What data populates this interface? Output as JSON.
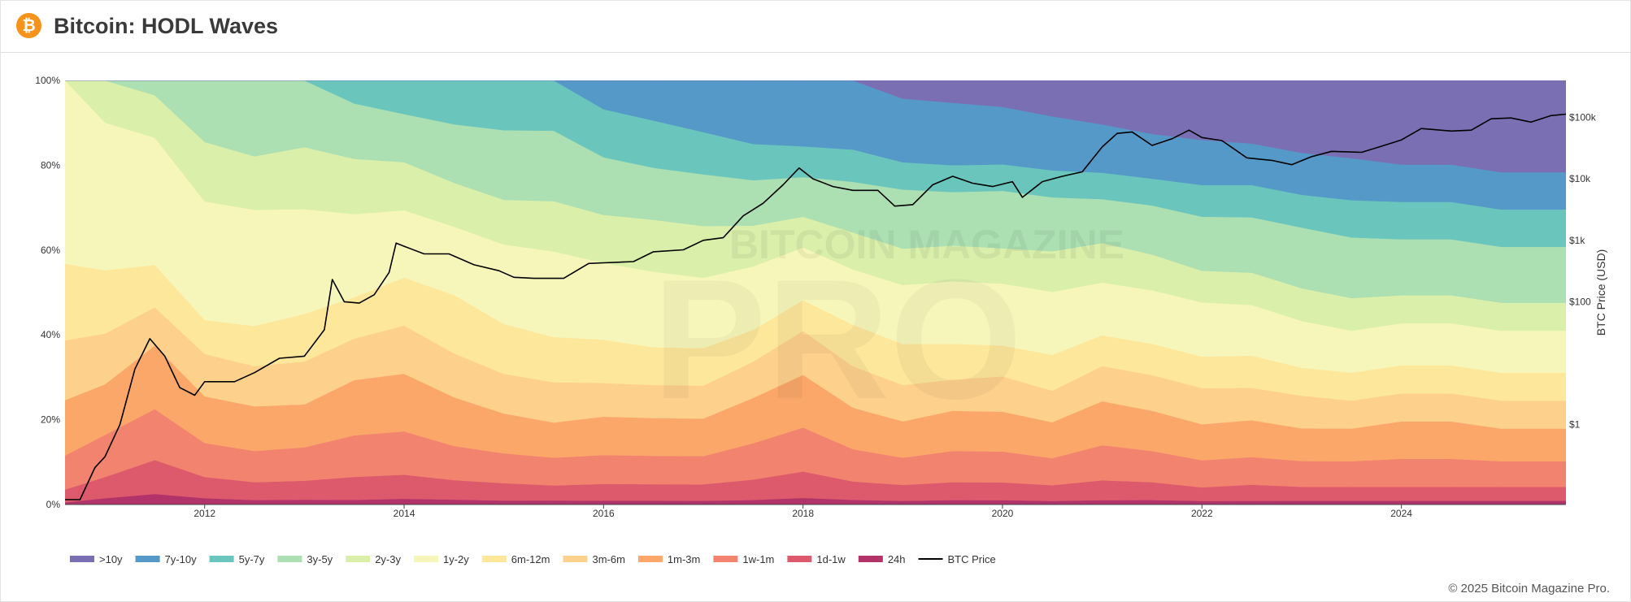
{
  "header": {
    "title": "Bitcoin: HODL Waves",
    "logo_icon": "bitcoin-logo-icon",
    "logo_glyph": "₿"
  },
  "footer": {
    "copyright": "© 2025 Bitcoin Magazine Pro."
  },
  "watermark": {
    "text": "BITCOIN MAGAZINE",
    "text2": "PRO"
  },
  "chart_data": {
    "type": "area",
    "stacked": true,
    "y_axis": {
      "label": "",
      "range": [
        0,
        100
      ],
      "unit": "%",
      "ticks": [
        "0%",
        "20%",
        "40%",
        "60%",
        "80%",
        "100%"
      ]
    },
    "y2_axis": {
      "label": "BTC Price (USD)",
      "scale": "log",
      "range": [
        0.05,
        400000
      ],
      "ticks": [
        "$1",
        "$100",
        "$1k",
        "$10k",
        "$100k"
      ],
      "tick_values": [
        1,
        100,
        1000,
        10000,
        100000
      ]
    },
    "x_axis": {
      "range": [
        2010.6,
        2025.65
      ],
      "ticks": [
        "2012",
        "2014",
        "2016",
        "2018",
        "2020",
        "2022",
        "2024"
      ],
      "tick_values": [
        2012,
        2014,
        2016,
        2018,
        2020,
        2022,
        2024
      ]
    },
    "grid": false,
    "legend_position": "bottom-left",
    "x": [
      2010.6,
      2011.0,
      2011.5,
      2012.0,
      2012.5,
      2013.0,
      2013.5,
      2014.0,
      2014.5,
      2015.0,
      2015.5,
      2016.0,
      2016.5,
      2017.0,
      2017.5,
      2018.0,
      2018.5,
      2019.0,
      2019.5,
      2020.0,
      2020.5,
      2021.0,
      2021.5,
      2022.0,
      2022.5,
      2023.0,
      2023.5,
      2024.0,
      2024.5,
      2025.0,
      2025.65
    ],
    "series": [
      {
        "name": "24h",
        "color": "#b2326a",
        "values": [
          0.5,
          1.5,
          2.5,
          1.5,
          1,
          1,
          1,
          1.2,
          1,
          0.8,
          0.8,
          0.8,
          0.8,
          0.8,
          1,
          1.5,
          1,
          0.8,
          1,
          1,
          0.8,
          1,
          1,
          0.8,
          0.8,
          0.8,
          0.8,
          0.8,
          0.8,
          0.8,
          0.8
        ]
      },
      {
        "name": "1d-1w",
        "color": "#dd5a6c",
        "values": [
          3,
          5,
          8,
          5,
          4,
          4,
          5,
          5,
          4,
          3.5,
          3,
          3.5,
          3.5,
          3.5,
          4.5,
          6,
          4,
          3.5,
          4,
          4,
          3.5,
          4.5,
          4,
          3,
          3.5,
          3,
          3,
          3,
          3,
          3,
          3
        ]
      },
      {
        "name": "1w-1m",
        "color": "#f2836e",
        "values": [
          8,
          10,
          12,
          8,
          7,
          7,
          9,
          9,
          7,
          6,
          5.5,
          6,
          6,
          6,
          8,
          10,
          7,
          6,
          7,
          7,
          6,
          8,
          7,
          6,
          6,
          5.5,
          5.5,
          6,
          6,
          5.5,
          5.5
        ]
      },
      {
        "name": "1m-3m",
        "color": "#fba76a",
        "values": [
          13,
          12,
          15,
          11,
          10,
          9,
          12,
          12,
          10,
          8,
          7,
          8,
          8,
          8,
          10,
          12,
          9,
          8,
          9,
          9,
          8,
          10,
          9,
          8,
          8,
          7,
          7,
          8,
          8,
          7,
          7
        ]
      },
      {
        "name": "3m-6m",
        "color": "#fdd08b",
        "values": [
          14,
          12,
          9,
          10,
          9,
          9,
          9,
          10,
          9,
          8,
          8,
          7,
          7,
          7,
          8,
          10,
          9,
          8,
          7,
          8,
          7,
          8,
          8,
          8,
          7,
          7,
          6,
          6,
          6,
          6,
          6
        ]
      },
      {
        "name": "6m-12m",
        "color": "#fde79b",
        "values": [
          18,
          15,
          10,
          8,
          9,
          10,
          9,
          10,
          12,
          10,
          9,
          9,
          8,
          8,
          7,
          7,
          9,
          9,
          8,
          7,
          8,
          7,
          7,
          7,
          7,
          6,
          6,
          6,
          6,
          6,
          6
        ]
      },
      {
        "name": "1y-2y",
        "color": "#f7f6ba",
        "values": [
          43,
          35,
          30,
          28,
          26,
          22,
          18,
          14,
          14,
          16,
          17,
          16,
          16,
          15,
          14,
          12,
          12,
          13,
          14,
          14,
          14,
          12,
          12,
          12,
          11,
          10,
          9,
          9,
          9,
          9,
          9
        ]
      },
      {
        "name": "2y-3y",
        "color": "#d9efaa",
        "values": [
          0,
          10,
          10,
          14,
          12,
          13,
          12,
          10,
          9,
          9,
          10,
          10,
          11,
          11,
          9,
          7,
          8,
          8,
          8,
          8,
          9,
          9,
          8,
          7,
          7,
          7,
          7,
          6,
          6,
          6,
          6
        ]
      },
      {
        "name": "3y-5y",
        "color": "#acdfb2",
        "values": [
          0,
          0,
          3.5,
          14.5,
          17,
          14,
          12,
          10,
          12,
          14,
          14,
          12,
          11,
          11,
          10,
          9,
          11,
          13,
          12,
          13,
          12,
          10,
          11,
          12,
          12,
          13,
          13,
          12,
          12,
          12,
          12
        ]
      },
      {
        "name": "5y-7y",
        "color": "#6ac6bd",
        "values": [
          0,
          0,
          0,
          0,
          0,
          0,
          5,
          7,
          9,
          10,
          10,
          10,
          10,
          9,
          8,
          7,
          7,
          6,
          6,
          6,
          6,
          6,
          6,
          7,
          7,
          7,
          8,
          8,
          8,
          8,
          8
        ]
      },
      {
        "name": "7y-10y",
        "color": "#5599c8",
        "values": [
          0,
          0,
          0,
          0,
          0,
          0,
          0,
          0,
          0,
          0,
          0,
          6,
          8.5,
          11,
          14,
          15,
          15,
          14,
          14,
          13,
          12,
          11,
          10,
          10,
          9,
          9,
          9,
          8,
          8,
          8,
          8
        ]
      },
      {
        "name": ">10y",
        "color": "#7b6fb4",
        "values": [
          0,
          0,
          0,
          0,
          0,
          0,
          0,
          0,
          0,
          0,
          0,
          0,
          0,
          0,
          0,
          0,
          0,
          4,
          5,
          6,
          8,
          10,
          12,
          13.2,
          13.7,
          15.5,
          16.7,
          18,
          18,
          19.7,
          19.7
        ]
      }
    ],
    "price_series": {
      "name": "BTC Price",
      "color": "#000000",
      "x": [
        2010.6,
        2010.75,
        2010.9,
        2011.0,
        2011.15,
        2011.3,
        2011.45,
        2011.6,
        2011.75,
        2011.9,
        2012.0,
        2012.3,
        2012.5,
        2012.75,
        2013.0,
        2013.2,
        2013.28,
        2013.4,
        2013.55,
        2013.7,
        2013.85,
        2013.92,
        2014.0,
        2014.2,
        2014.45,
        2014.7,
        2014.95,
        2015.1,
        2015.3,
        2015.6,
        2015.85,
        2016.0,
        2016.3,
        2016.5,
        2016.8,
        2017.0,
        2017.2,
        2017.4,
        2017.6,
        2017.8,
        2017.96,
        2018.1,
        2018.3,
        2018.5,
        2018.75,
        2018.92,
        2019.1,
        2019.3,
        2019.5,
        2019.7,
        2019.9,
        2020.1,
        2020.2,
        2020.4,
        2020.6,
        2020.8,
        2021.0,
        2021.15,
        2021.3,
        2021.5,
        2021.7,
        2021.87,
        2022.0,
        2022.2,
        2022.45,
        2022.7,
        2022.9,
        2023.1,
        2023.3,
        2023.6,
        2023.8,
        2024.0,
        2024.2,
        2024.5,
        2024.7,
        2024.9,
        2025.1,
        2025.3,
        2025.5,
        2025.65
      ],
      "values": [
        0.06,
        0.06,
        0.2,
        0.3,
        1,
        8,
        25,
        13,
        4,
        3,
        5,
        5,
        7,
        12,
        13,
        35,
        230,
        100,
        95,
        130,
        300,
        900,
        800,
        600,
        600,
        400,
        320,
        250,
        240,
        240,
        420,
        430,
        450,
        650,
        700,
        1000,
        1100,
        2500,
        4000,
        8000,
        15000,
        10000,
        7500,
        6500,
        6500,
        3600,
        3800,
        8000,
        11000,
        8500,
        7500,
        9000,
        5000,
        9000,
        11000,
        13000,
        33000,
        55000,
        58000,
        35000,
        45000,
        62000,
        47000,
        42000,
        22000,
        20000,
        17000,
        23000,
        28000,
        27000,
        34000,
        43000,
        66000,
        60000,
        62000,
        95000,
        98000,
        84000,
        107000,
        113000
      ]
    }
  }
}
